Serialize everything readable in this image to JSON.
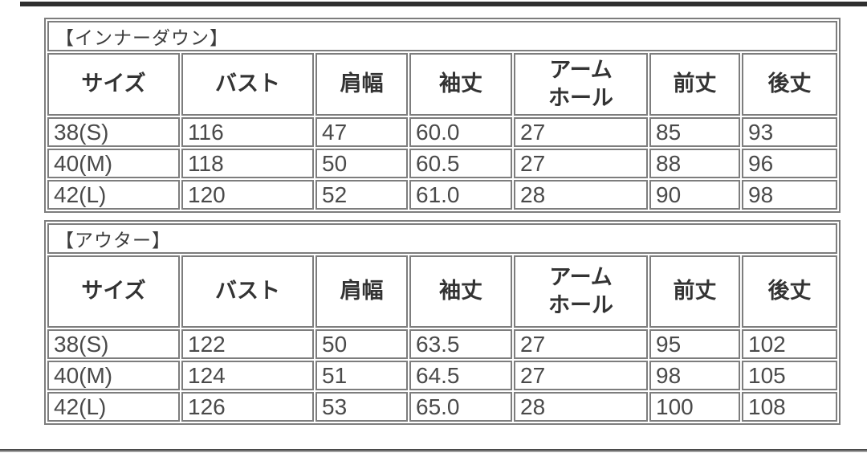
{
  "page": {
    "background": "#ffffff",
    "top_bar_color": "#2f2f2f",
    "bottom_bar_color": "#4a4a4a",
    "border_color": "#7d7d7d",
    "title_text_color": "#3c3c3c",
    "header_text_color": "#333333",
    "data_text_color": "#4a4a4a"
  },
  "columns": [
    "サイズ",
    "バスト",
    "肩幅",
    "袖丈",
    "アーム\nホール",
    "前丈",
    "後丈"
  ],
  "tables": [
    {
      "id": "inner-down",
      "title": "【インナーダウン】",
      "rows": [
        [
          "38(S)",
          "116",
          "47",
          "60.0",
          "27",
          "85",
          "93"
        ],
        [
          "40(M)",
          "118",
          "50",
          "60.5",
          "27",
          "88",
          "96"
        ],
        [
          "42(L)",
          "120",
          "52",
          "61.0",
          "28",
          "90",
          "98"
        ]
      ]
    },
    {
      "id": "outer",
      "title": "【アウター】",
      "rows": [
        [
          "38(S)",
          "122",
          "50",
          "63.5",
          "27",
          "95",
          "102"
        ],
        [
          "40(M)",
          "124",
          "51",
          "64.5",
          "27",
          "98",
          "105"
        ],
        [
          "42(L)",
          "126",
          "53",
          "65.0",
          "28",
          "100",
          "108"
        ]
      ]
    }
  ]
}
